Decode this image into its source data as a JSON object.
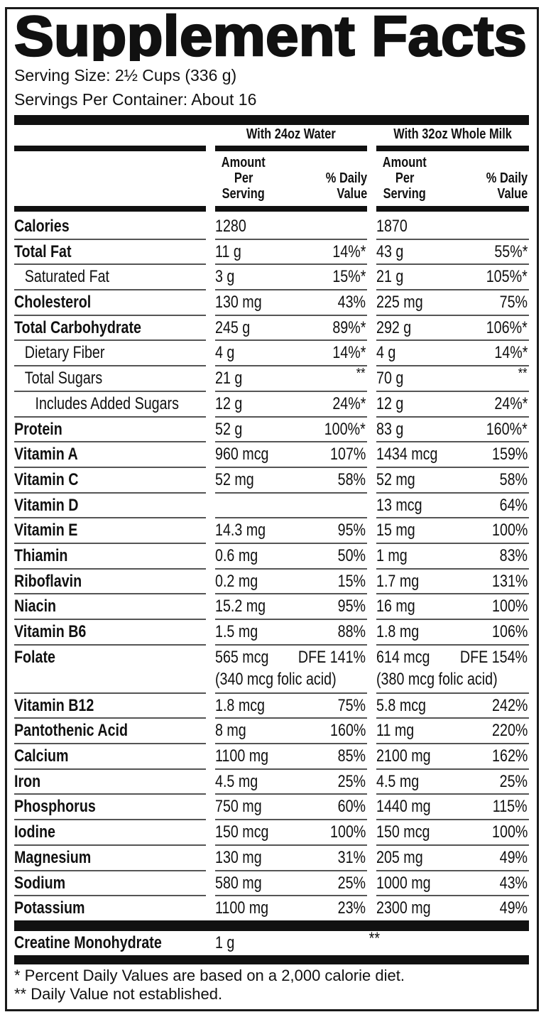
{
  "title": "Supplement Facts",
  "serving_size": "Serving Size: 2½ Cups (336 g)",
  "servings_per_container": "Servings Per Container: About 16",
  "columns": {
    "water": "With 24oz Water",
    "milk": "With 32oz Whole Milk",
    "amount_line1": "Amount",
    "amount_line2": "Per",
    "amount_line3": "Serving",
    "dv_line1": "% Daily",
    "dv_line2": "Value"
  },
  "rows": [
    {
      "label": "Calories",
      "indent": 0,
      "water": {
        "amount": "1280",
        "dv": ""
      },
      "milk": {
        "amount": "1870",
        "dv": ""
      }
    },
    {
      "label": "Total Fat",
      "indent": 0,
      "water": {
        "amount": "11 g",
        "dv": "14%*"
      },
      "milk": {
        "amount": "43 g",
        "dv": "55%*"
      }
    },
    {
      "label": "Saturated Fat",
      "indent": 1,
      "water": {
        "amount": "3 g",
        "dv": "15%*"
      },
      "milk": {
        "amount": "21 g",
        "dv": "105%*"
      }
    },
    {
      "label": "Cholesterol",
      "indent": 0,
      "water": {
        "amount": "130 mg",
        "dv": "43%"
      },
      "milk": {
        "amount": "225 mg",
        "dv": "75%"
      }
    },
    {
      "label": "Total Carbohydrate",
      "indent": 0,
      "water": {
        "amount": "245 g",
        "dv": "89%*"
      },
      "milk": {
        "amount": "292 g",
        "dv": "106%*"
      }
    },
    {
      "label": "Dietary Fiber",
      "indent": 1,
      "water": {
        "amount": "4 g",
        "dv": "14%*"
      },
      "milk": {
        "amount": "4 g",
        "dv": "14%*"
      }
    },
    {
      "label": "Total Sugars",
      "indent": 1,
      "water": {
        "amount": "21 g",
        "dv": "**"
      },
      "milk": {
        "amount": "70 g",
        "dv": "**"
      }
    },
    {
      "label": "Includes Added Sugars",
      "indent": 2,
      "water": {
        "amount": "12 g",
        "dv": "24%*"
      },
      "milk": {
        "amount": "12 g",
        "dv": "24%*"
      }
    },
    {
      "label": "Protein",
      "indent": 0,
      "water": {
        "amount": "52 g",
        "dv": "100%*"
      },
      "milk": {
        "amount": "83 g",
        "dv": "160%*"
      }
    },
    {
      "label": "Vitamin A",
      "indent": 0,
      "water": {
        "amount": "960 mcg",
        "dv": "107%"
      },
      "milk": {
        "amount": "1434 mcg",
        "dv": "159%"
      }
    },
    {
      "label": "Vitamin C",
      "indent": 0,
      "water": {
        "amount": "52 mg",
        "dv": "58%"
      },
      "milk": {
        "amount": "52 mg",
        "dv": "58%"
      }
    },
    {
      "label": "Vitamin D",
      "indent": 0,
      "water": {
        "amount": "",
        "dv": ""
      },
      "milk": {
        "amount": "13 mcg",
        "dv": "64%"
      }
    },
    {
      "label": "Vitamin E",
      "indent": 0,
      "water": {
        "amount": "14.3 mg",
        "dv": "95%"
      },
      "milk": {
        "amount": "15 mg",
        "dv": "100%"
      }
    },
    {
      "label": "Thiamin",
      "indent": 0,
      "water": {
        "amount": "0.6 mg",
        "dv": "50%"
      },
      "milk": {
        "amount": "1 mg",
        "dv": "83%"
      }
    },
    {
      "label": "Riboflavin",
      "indent": 0,
      "water": {
        "amount": "0.2 mg",
        "dv": "15%"
      },
      "milk": {
        "amount": "1.7 mg",
        "dv": "131%"
      }
    },
    {
      "label": "Niacin",
      "indent": 0,
      "water": {
        "amount": "15.2 mg",
        "dv": "95%"
      },
      "milk": {
        "amount": "16 mg",
        "dv": "100%"
      }
    },
    {
      "label": "Vitamin B6",
      "indent": 0,
      "water": {
        "amount": "1.5 mg",
        "dv": "88%"
      },
      "milk": {
        "amount": "1.8 mg",
        "dv": "106%"
      }
    },
    {
      "label": "Folate",
      "indent": 0,
      "water": {
        "amount": "565 mcg",
        "dv": "DFE 141%",
        "note": "(340 mcg folic acid)"
      },
      "milk": {
        "amount": "614 mcg",
        "dv": "DFE 154%",
        "note": "(380 mcg folic acid)"
      }
    },
    {
      "label": "Vitamin B12",
      "indent": 0,
      "water": {
        "amount": "1.8 mcg",
        "dv": "75%"
      },
      "milk": {
        "amount": "5.8 mcg",
        "dv": "242%"
      }
    },
    {
      "label": "Pantothenic Acid",
      "indent": 0,
      "water": {
        "amount": "8 mg",
        "dv": "160%"
      },
      "milk": {
        "amount": "11 mg",
        "dv": "220%"
      }
    },
    {
      "label": "Calcium",
      "indent": 0,
      "water": {
        "amount": "1100 mg",
        "dv": "85%"
      },
      "milk": {
        "amount": "2100 mg",
        "dv": "162%"
      }
    },
    {
      "label": "Iron",
      "indent": 0,
      "water": {
        "amount": "4.5 mg",
        "dv": "25%"
      },
      "milk": {
        "amount": "4.5 mg",
        "dv": "25%"
      }
    },
    {
      "label": "Phosphorus",
      "indent": 0,
      "water": {
        "amount": "750 mg",
        "dv": "60%"
      },
      "milk": {
        "amount": "1440 mg",
        "dv": "115%"
      }
    },
    {
      "label": "Iodine",
      "indent": 0,
      "water": {
        "amount": "150 mcg",
        "dv": "100%"
      },
      "milk": {
        "amount": "150 mcg",
        "dv": "100%"
      }
    },
    {
      "label": "Magnesium",
      "indent": 0,
      "water": {
        "amount": "130 mg",
        "dv": "31%"
      },
      "milk": {
        "amount": "205 mg",
        "dv": "49%"
      }
    },
    {
      "label": "Sodium",
      "indent": 0,
      "water": {
        "amount": "580 mg",
        "dv": "25%"
      },
      "milk": {
        "amount": "1000 mg",
        "dv": "43%"
      }
    },
    {
      "label": "Potassium",
      "indent": 0,
      "water": {
        "amount": "1100 mg",
        "dv": "23%"
      },
      "milk": {
        "amount": "2300 mg",
        "dv": "49%"
      }
    }
  ],
  "creatine": {
    "label": "Creatine Monohydrate",
    "amount": "1 g",
    "dv": "**"
  },
  "footnotes": [
    "* Percent Daily Values are based on a 2,000 calorie diet.",
    "** Daily Value not established."
  ]
}
